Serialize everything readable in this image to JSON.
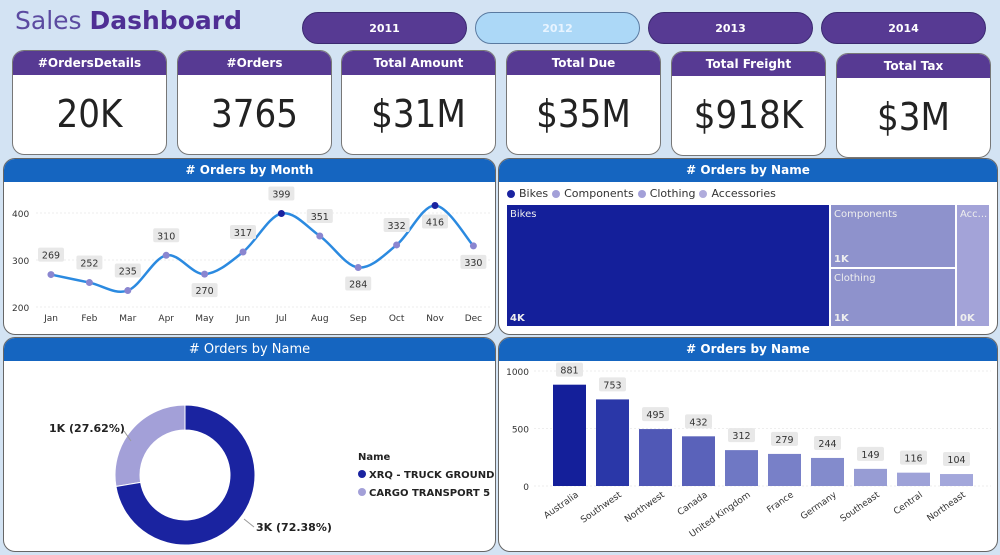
{
  "header": {
    "title_light": "Sales",
    "title_bold": "Dashboard"
  },
  "years": [
    {
      "label": "2011",
      "selected": false
    },
    {
      "label": "2012",
      "selected": true
    },
    {
      "label": "2013",
      "selected": false
    },
    {
      "label": "2014",
      "selected": false
    }
  ],
  "kpis": [
    {
      "label": "#OrdersDetails",
      "value": "20K"
    },
    {
      "label": "#Orders",
      "value": "3765"
    },
    {
      "label": "Total Amount",
      "value": "$31M"
    },
    {
      "label": "Total Due",
      "value": "$35M"
    },
    {
      "label": "Total Freight",
      "value": "$918K"
    },
    {
      "label": "Total Tax",
      "value": "$3M"
    }
  ],
  "colors": {
    "purple": "#573a93",
    "blue_header": "#1565c0",
    "dark_series": "#1a23a0",
    "light_series": "#a3a0d8",
    "line": "#2b8ae0"
  },
  "chart_data": [
    {
      "type": "line",
      "title": "# Orders by Month",
      "categories": [
        "Jan",
        "Feb",
        "Mar",
        "Apr",
        "May",
        "Jun",
        "Jul",
        "Aug",
        "Sep",
        "Oct",
        "Nov",
        "Dec"
      ],
      "values": [
        269,
        252,
        235,
        310,
        270,
        317,
        399,
        351,
        284,
        332,
        416,
        330
      ],
      "yticks": [
        "200",
        "300",
        "400"
      ],
      "ylim": [
        200,
        400
      ],
      "grid": true
    },
    {
      "type": "treemap",
      "title": "# Orders by Name",
      "legend": [
        "Bikes",
        "Components",
        "Clothing",
        "Accessories"
      ],
      "items": [
        {
          "name": "Bikes",
          "label": "Bikes",
          "value": "4K"
        },
        {
          "name": "Components",
          "label": "Components",
          "value": "1K"
        },
        {
          "name": "Clothing",
          "label": "Clothing",
          "value": "1K"
        },
        {
          "name": "Accessories",
          "label": "Acc...",
          "value": "0K"
        }
      ]
    },
    {
      "type": "pie",
      "title": "# Orders by Name",
      "legend_title": "Name",
      "slices": [
        {
          "name": "XRQ - TRUCK GROUND",
          "percent": 72.38,
          "label": "3K (72.38%)"
        },
        {
          "name": "CARGO TRANSPORT 5",
          "percent": 27.62,
          "label": "1K (27.62%)"
        }
      ]
    },
    {
      "type": "bar",
      "title": "# Orders by Name",
      "categories": [
        "Australia",
        "Southwest",
        "Northwest",
        "Canada",
        "United Kingdom",
        "France",
        "Germany",
        "Southeast",
        "Central",
        "Northeast"
      ],
      "values": [
        881,
        753,
        495,
        432,
        312,
        279,
        244,
        149,
        116,
        104
      ],
      "yticks": [
        "0",
        "500",
        "1000"
      ],
      "ylim": [
        0,
        1000
      ],
      "grid": true
    }
  ]
}
